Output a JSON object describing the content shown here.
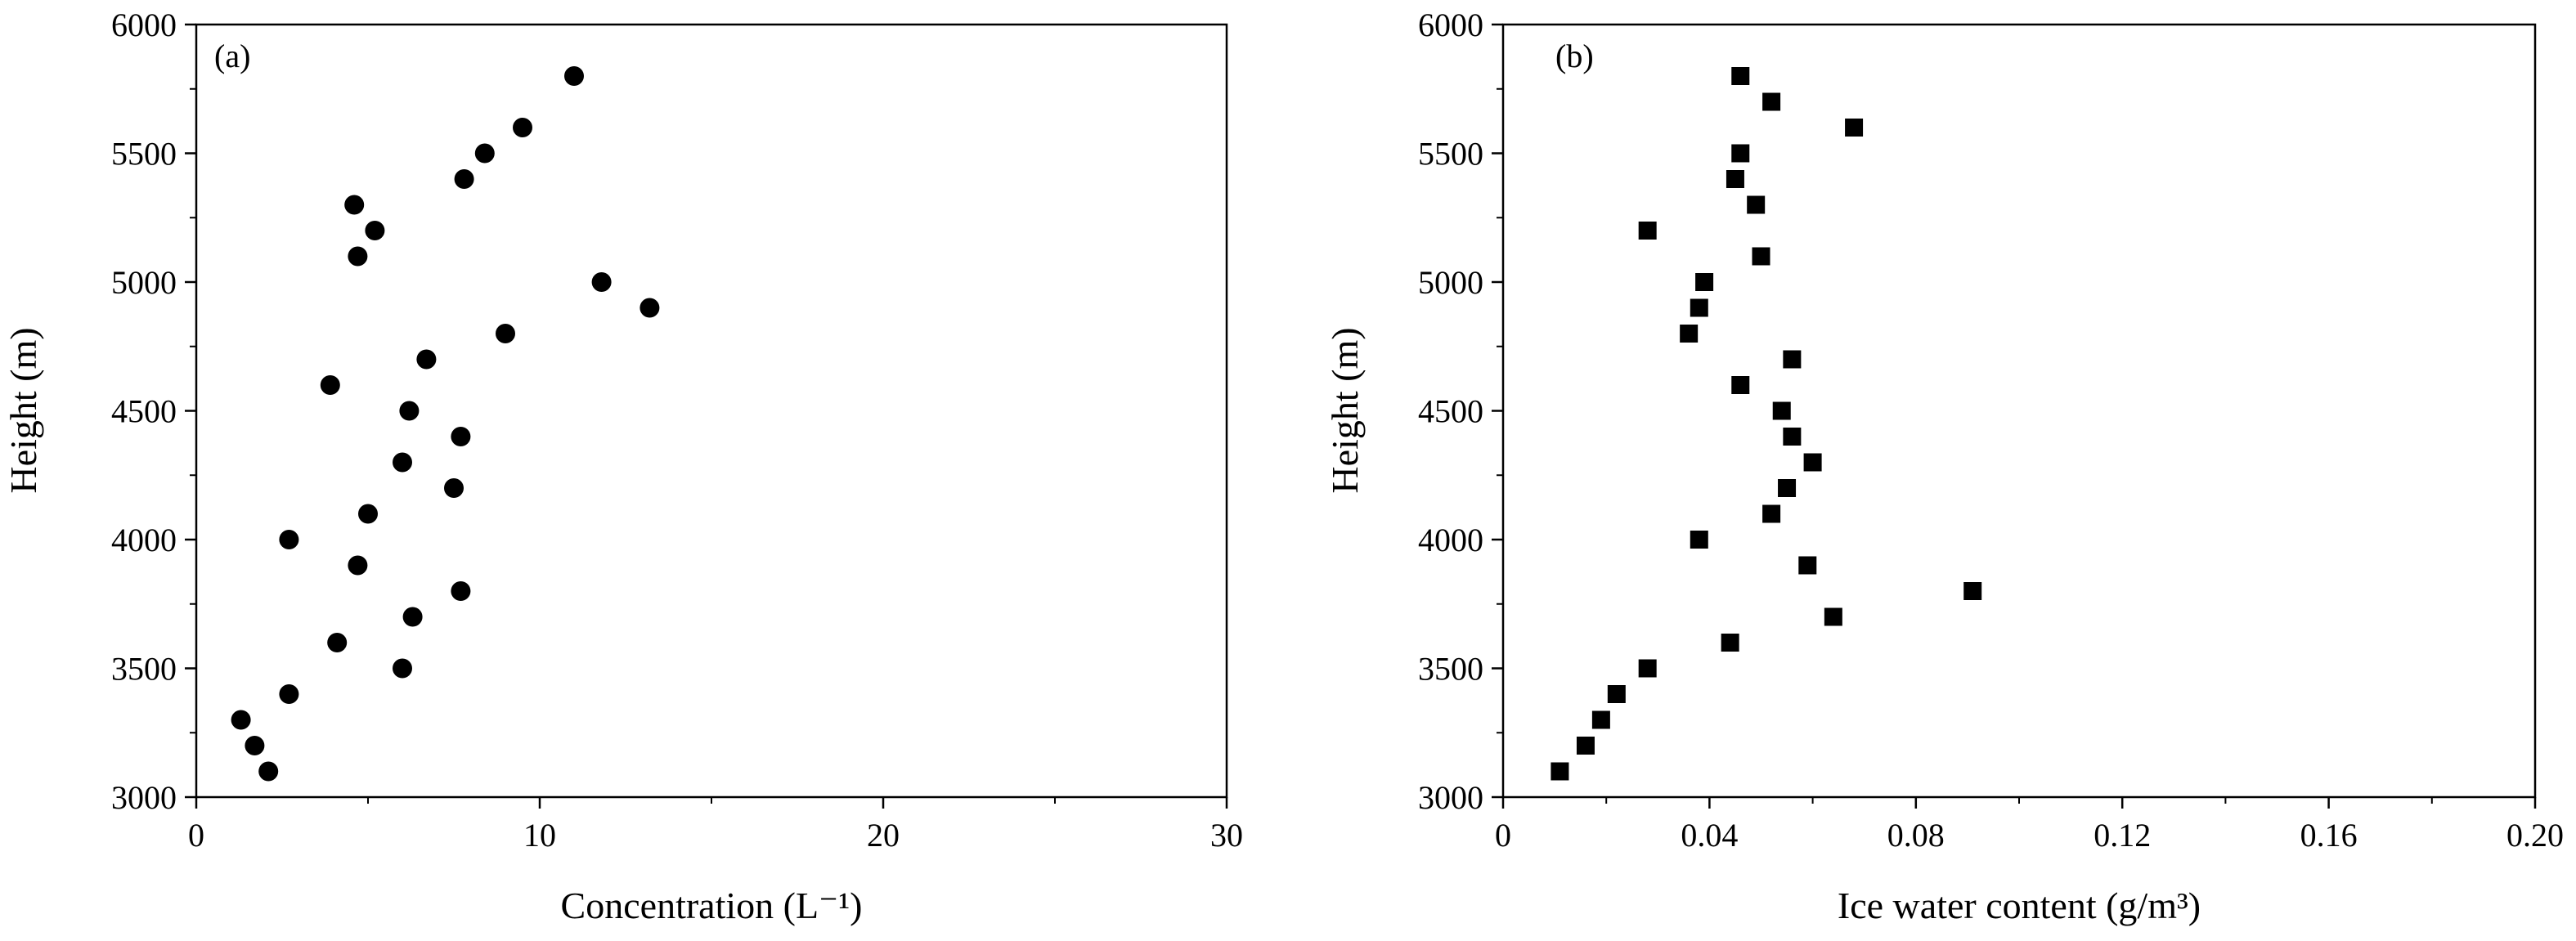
{
  "chart_data": [
    {
      "type": "scatter",
      "panel_label": "(a)",
      "xlabel": "Concentration (L⁻¹)",
      "ylabel": "Height (m)",
      "xlim": [
        0,
        30
      ],
      "ylim": [
        3000,
        6000
      ],
      "x_ticks": [
        "0",
        "10",
        "20",
        "30"
      ],
      "y_ticks": [
        "3000",
        "3500",
        "4000",
        "4500",
        "5000",
        "5500",
        "6000"
      ],
      "marker": "circle",
      "marker_color": "#000000",
      "grid": false,
      "points": [
        {
          "x": 11.0,
          "y": 5800
        },
        {
          "x": 9.5,
          "y": 5600
        },
        {
          "x": 8.4,
          "y": 5500
        },
        {
          "x": 7.8,
          "y": 5400
        },
        {
          "x": 4.6,
          "y": 5300
        },
        {
          "x": 5.2,
          "y": 5200
        },
        {
          "x": 4.7,
          "y": 5100
        },
        {
          "x": 11.8,
          "y": 5000
        },
        {
          "x": 13.2,
          "y": 4900
        },
        {
          "x": 9.0,
          "y": 4800
        },
        {
          "x": 6.7,
          "y": 4700
        },
        {
          "x": 3.9,
          "y": 4600
        },
        {
          "x": 6.2,
          "y": 4500
        },
        {
          "x": 7.7,
          "y": 4400
        },
        {
          "x": 6.0,
          "y": 4300
        },
        {
          "x": 7.5,
          "y": 4200
        },
        {
          "x": 5.0,
          "y": 4100
        },
        {
          "x": 2.7,
          "y": 4000
        },
        {
          "x": 4.7,
          "y": 3900
        },
        {
          "x": 7.7,
          "y": 3800
        },
        {
          "x": 6.3,
          "y": 3700
        },
        {
          "x": 4.1,
          "y": 3600
        },
        {
          "x": 6.0,
          "y": 3500
        },
        {
          "x": 2.7,
          "y": 3400
        },
        {
          "x": 1.3,
          "y": 3300
        },
        {
          "x": 1.7,
          "y": 3200
        },
        {
          "x": 2.1,
          "y": 3100
        }
      ]
    },
    {
      "type": "scatter",
      "panel_label": "(b)",
      "xlabel": "Ice water content (g/m³)",
      "ylabel": "Height (m)",
      "xlim": [
        0,
        0.2
      ],
      "ylim": [
        3000,
        6000
      ],
      "x_ticks": [
        "0",
        "0.04",
        "0.08",
        "0.12",
        "0.16",
        "0.20"
      ],
      "y_ticks": [
        "3000",
        "3500",
        "4000",
        "4500",
        "5000",
        "5500",
        "6000"
      ],
      "marker": "square",
      "marker_color": "#000000",
      "grid": false,
      "points": [
        {
          "x": 0.046,
          "y": 5800
        },
        {
          "x": 0.052,
          "y": 5700
        },
        {
          "x": 0.068,
          "y": 5600
        },
        {
          "x": 0.046,
          "y": 5500
        },
        {
          "x": 0.045,
          "y": 5400
        },
        {
          "x": 0.049,
          "y": 5300
        },
        {
          "x": 0.028,
          "y": 5200
        },
        {
          "x": 0.05,
          "y": 5100
        },
        {
          "x": 0.039,
          "y": 5000
        },
        {
          "x": 0.038,
          "y": 4900
        },
        {
          "x": 0.036,
          "y": 4800
        },
        {
          "x": 0.056,
          "y": 4700
        },
        {
          "x": 0.046,
          "y": 4600
        },
        {
          "x": 0.054,
          "y": 4500
        },
        {
          "x": 0.056,
          "y": 4400
        },
        {
          "x": 0.06,
          "y": 4300
        },
        {
          "x": 0.055,
          "y": 4200
        },
        {
          "x": 0.052,
          "y": 4100
        },
        {
          "x": 0.038,
          "y": 4000
        },
        {
          "x": 0.059,
          "y": 3900
        },
        {
          "x": 0.091,
          "y": 3800
        },
        {
          "x": 0.064,
          "y": 3700
        },
        {
          "x": 0.044,
          "y": 3600
        },
        {
          "x": 0.028,
          "y": 3500
        },
        {
          "x": 0.022,
          "y": 3400
        },
        {
          "x": 0.019,
          "y": 3300
        },
        {
          "x": 0.016,
          "y": 3200
        },
        {
          "x": 0.011,
          "y": 3100
        }
      ]
    }
  ]
}
